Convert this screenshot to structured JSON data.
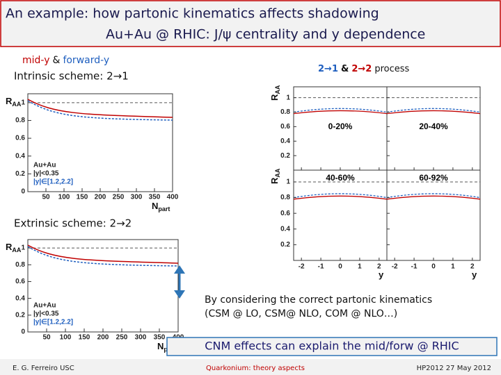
{
  "header": {
    "title_line1": "An example: how partonic kinematics affects shadowing",
    "title_line2": "Au+Au @ RHIC: J/ψ centrality and y dependence"
  },
  "labels": {
    "mid_y": "mid-y",
    "amp": "&",
    "forward_y": "forward-y",
    "intrinsic": "Intrinsic scheme: 2→1",
    "extrinsic": "Extrinsic scheme: 2→2",
    "process_a": "2→1",
    "process_amp": "&",
    "process_b": "2→2",
    "process_word": "process"
  },
  "figures": {
    "intrinsic": {
      "y_label": "R",
      "y_label_sub": "AA",
      "x_label": "N",
      "x_label_sub": "part",
      "xlim": [
        0,
        400
      ],
      "ylim": [
        0,
        1.1
      ],
      "xticks": [
        50,
        100,
        150,
        200,
        250,
        300,
        350,
        400
      ],
      "yticks": [
        0,
        0.2,
        0.4,
        0.6,
        0.8,
        1
      ],
      "legend": [
        "Au+Au",
        "|y|<0.35",
        "|y|∈[1.2,2.2]"
      ]
    },
    "extrinsic": {
      "y_label": "R",
      "y_label_sub": "AA",
      "x_label": "N",
      "x_label_sub": "part",
      "xlim": [
        0,
        400
      ],
      "ylim": [
        0,
        1.1
      ],
      "xticks": [
        50,
        100,
        150,
        200,
        250,
        300,
        350,
        400
      ],
      "yticks": [
        0,
        0.2,
        0.4,
        0.6,
        0.8,
        1
      ],
      "legend": [
        "Au+Au",
        "|y|<0.35",
        "|y|∈[1.2,2.2]"
      ]
    },
    "rapidity": {
      "y_label": "R",
      "y_label_sub": "AA",
      "x_label": "y",
      "xlim": [
        -2.4,
        2.4
      ],
      "ylim": [
        0,
        1.15
      ],
      "xticks": [
        -2,
        -1,
        0,
        1,
        2
      ],
      "yticks": [
        0.2,
        0.4,
        0.6,
        0.8,
        1
      ],
      "panels": [
        "0-20%",
        "20-40%",
        "40-60%",
        "60-92%"
      ]
    }
  },
  "note": {
    "line1": "By considering  the correct partonic kinematics",
    "line2": "(CSM @ LO, CSM@ NLO, COM @ NLO…)"
  },
  "conclusion": "CNM effects can explain the mid/forw @ RHIC",
  "footer": {
    "author": "E. G. Ferreiro USC",
    "topic": "Quarkonium: theory aspects",
    "event": "HP2012  27  May 2012"
  }
}
